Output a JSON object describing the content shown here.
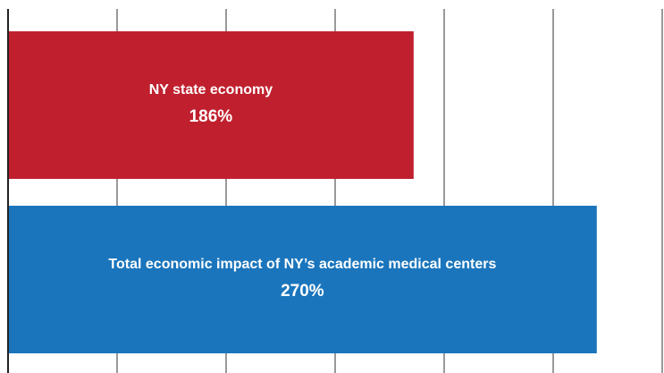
{
  "chart_data": {
    "type": "hbar",
    "categories": [
      "NY state economy",
      "Total economic impact of NY’s academic medical centers"
    ],
    "values": [
      186,
      270
    ],
    "value_labels": [
      "186%",
      "270%"
    ],
    "colors": [
      "#c0202e",
      "#1a75bc"
    ],
    "xlim": [
      0,
      300
    ],
    "xticks": [
      0,
      50,
      100,
      150,
      200,
      250,
      300
    ],
    "grid": true
  }
}
